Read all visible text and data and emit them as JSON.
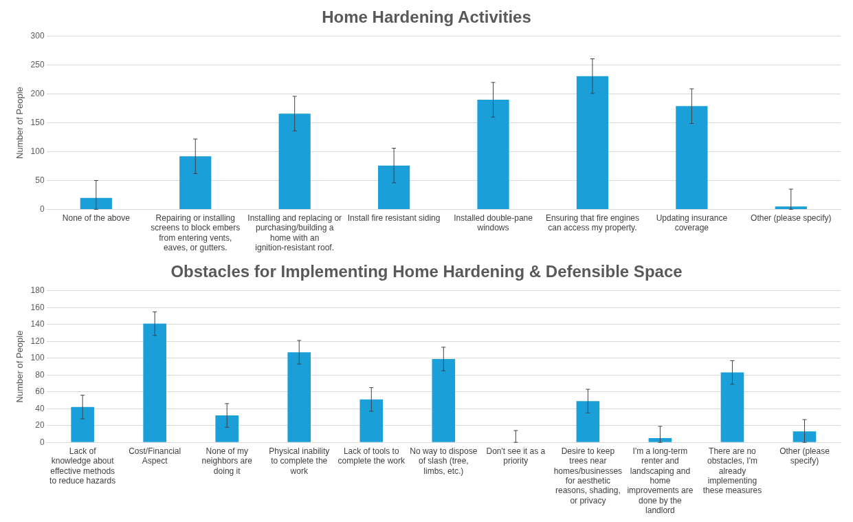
{
  "chart_data": [
    {
      "type": "bar",
      "title": "Home Hardening Activities",
      "ylabel": "Number of People",
      "categories": [
        "None of the above",
        "Repairing or installing screens to block embers from entering vents, eaves, or gutters.",
        "Installing and replacing or purchasing/building a home with an ignition-resistant roof.",
        "Install fire resistant siding",
        "Installed double-pane windows",
        "Ensuring that fire engines can access my property.",
        "Updating insurance coverage",
        "Other (please specify)"
      ],
      "values": [
        20,
        92,
        166,
        76,
        190,
        231,
        179,
        5
      ],
      "errors": [
        [
          0,
          50
        ],
        30,
        30,
        30,
        30,
        30,
        30,
        [
          0,
          35
        ]
      ],
      "color": "#1a9fd9",
      "ylim": [
        0,
        300
      ],
      "yticks": [
        0,
        50,
        100,
        150,
        200,
        250,
        300
      ],
      "grid": "y",
      "legend": false
    },
    {
      "type": "bar",
      "title": "Obstacles for Implementing Home Hardening & Defensible Space",
      "ylabel": "Number of People",
      "categories": [
        "Lack of knowledge about effective methods to reduce hazards",
        "Cost/Financial Aspect",
        "None of my neighbors are doing it",
        "Physical inability to complete the work",
        "Lack of tools to complete the work",
        "No way to dispose of slash (tree, limbs, etc.)",
        "Don't see it as a priority",
        "Desire to keep trees near homes/businesses for aesthetic reasons, shading, or privacy",
        "I'm a long-term renter and landscaping and home improvements are done by the landlord",
        "There are no obstacles, I'm already implementing these measures",
        "Other (please specify)"
      ],
      "values": [
        42,
        141,
        32,
        107,
        51,
        99,
        0,
        49,
        5,
        83,
        13
      ],
      "errors": [
        14,
        14,
        14,
        14,
        14,
        14,
        [
          0,
          14
        ],
        14,
        [
          0,
          19
        ],
        14,
        [
          0,
          27
        ]
      ],
      "color": "#1a9fd9",
      "ylim": [
        0,
        180
      ],
      "yticks": [
        0,
        20,
        40,
        60,
        80,
        100,
        120,
        140,
        160,
        180
      ],
      "grid": "y",
      "legend": false
    }
  ]
}
